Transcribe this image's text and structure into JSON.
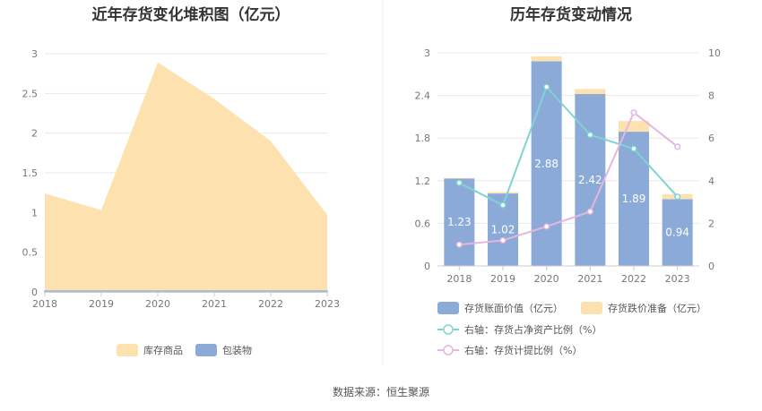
{
  "source_text": "数据来源：恒生聚源",
  "chart_data": [
    {
      "type": "area",
      "title": "近年存货变化堆积图（亿元）",
      "x": [
        "2018",
        "2019",
        "2020",
        "2021",
        "2022",
        "2023"
      ],
      "ylim": [
        0,
        3
      ],
      "yticks": [
        "0",
        "0.5",
        "1",
        "1.5",
        "2",
        "2.5",
        "3"
      ],
      "series": [
        {
          "name": "库存商品",
          "values": [
            1.23,
            1.02,
            2.88,
            2.42,
            1.89,
            0.96
          ],
          "color": "#fde2b0"
        },
        {
          "name": "包装物",
          "values": [
            0.01,
            0.01,
            0.01,
            0.01,
            0.01,
            0.01
          ],
          "color": "#8caad8"
        }
      ],
      "legend_position": "bottom"
    },
    {
      "type": "bar",
      "title": "历年存货变动情况",
      "categories": [
        "2018",
        "2019",
        "2020",
        "2021",
        "2022",
        "2023"
      ],
      "ylim": [
        0,
        3
      ],
      "yticks": [
        "0",
        "0.6",
        "1.2",
        "1.8",
        "2.4",
        "3"
      ],
      "y2lim": [
        0,
        10
      ],
      "y2ticks": [
        "0",
        "2",
        "4",
        "6",
        "8",
        "10"
      ],
      "series": [
        {
          "name": "存货账面价值（亿元）",
          "type": "bar",
          "values": [
            1.23,
            1.02,
            2.88,
            2.42,
            1.89,
            0.94
          ],
          "labels": [
            "1.23",
            "1.02",
            "2.88",
            "2.42",
            "1.89",
            "0.94"
          ],
          "color": "#8caad8"
        },
        {
          "name": "存货跌价准备（亿元）",
          "type": "bar",
          "values": [
            0.01,
            0.02,
            0.07,
            0.07,
            0.15,
            0.07
          ],
          "color": "#fde2b0"
        },
        {
          "name": "右轴：存货占净资产比例（%）",
          "type": "line",
          "axis": "right",
          "values": [
            3.9,
            2.85,
            8.4,
            6.15,
            5.5,
            3.25
          ],
          "color": "#7fd3d3"
        },
        {
          "name": "右轴：存货计提比例（%）",
          "type": "line",
          "axis": "right",
          "values": [
            1.0,
            1.2,
            1.85,
            2.55,
            7.2,
            5.6
          ],
          "color": "#e6b6dc"
        }
      ],
      "legend_position": "bottom"
    }
  ]
}
